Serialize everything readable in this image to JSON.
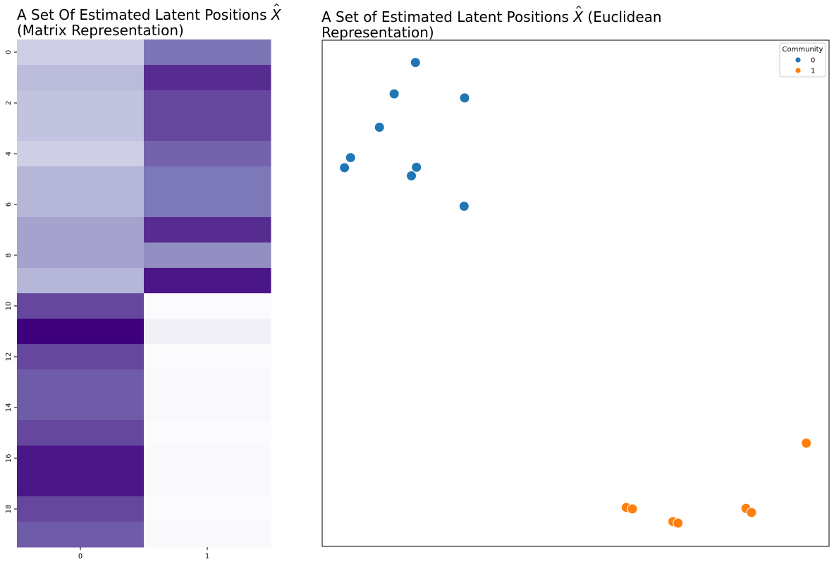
{
  "chart_data": [
    {
      "type": "heatmap",
      "title_prefix": "A Set Of Estimated Latent Positions",
      "title_symbol": "X",
      "title_line2": "(Matrix Representation)",
      "colormap": "Purples",
      "row_labels": [
        "0",
        "2",
        "4",
        "6",
        "8",
        "10",
        "12",
        "14",
        "16",
        "18"
      ],
      "col_labels": [
        "0",
        "1"
      ],
      "color_levels": [
        [
          0.3,
          0.65
        ],
        [
          0.38,
          0.86
        ],
        [
          0.35,
          0.78
        ],
        [
          0.35,
          0.78
        ],
        [
          0.3,
          0.7
        ],
        [
          0.4,
          0.64
        ],
        [
          0.4,
          0.64
        ],
        [
          0.47,
          0.86
        ],
        [
          0.47,
          0.55
        ],
        [
          0.4,
          0.93
        ],
        [
          0.78,
          0.01
        ],
        [
          1.0,
          0.1
        ],
        [
          0.78,
          0.01
        ],
        [
          0.72,
          0.03
        ],
        [
          0.72,
          0.03
        ],
        [
          0.78,
          0.01
        ],
        [
          0.93,
          0.03
        ],
        [
          0.93,
          0.03
        ],
        [
          0.78,
          0.01
        ],
        [
          0.72,
          0.03
        ]
      ]
    },
    {
      "type": "scatter",
      "title_prefix": "A Set of Estimated Latent Positions",
      "title_symbol": "X",
      "title_suffix": "(Euclidean",
      "title_line2": "Representation)",
      "axes_visible": false,
      "xlim": [
        0,
        1
      ],
      "ylim": [
        0,
        1
      ],
      "legend": {
        "title": "Community",
        "position": "upper right",
        "entries": [
          "0",
          "1"
        ]
      },
      "series": [
        {
          "name": "0",
          "color": "#1f77b4",
          "points": [
            {
              "x": 0.184,
              "y": 0.956
            },
            {
              "x": 0.142,
              "y": 0.894
            },
            {
              "x": 0.281,
              "y": 0.886
            },
            {
              "x": 0.113,
              "y": 0.828
            },
            {
              "x": 0.056,
              "y": 0.768
            },
            {
              "x": 0.044,
              "y": 0.748
            },
            {
              "x": 0.186,
              "y": 0.749
            },
            {
              "x": 0.176,
              "y": 0.732
            },
            {
              "x": 0.28,
              "y": 0.672
            }
          ]
        },
        {
          "name": "1",
          "color": "#ff7f0e",
          "points": [
            {
              "x": 0.955,
              "y": 0.204
            },
            {
              "x": 0.6,
              "y": 0.077
            },
            {
              "x": 0.612,
              "y": 0.074
            },
            {
              "x": 0.836,
              "y": 0.075
            },
            {
              "x": 0.847,
              "y": 0.067
            },
            {
              "x": 0.692,
              "y": 0.049
            },
            {
              "x": 0.702,
              "y": 0.046
            }
          ]
        }
      ]
    }
  ]
}
